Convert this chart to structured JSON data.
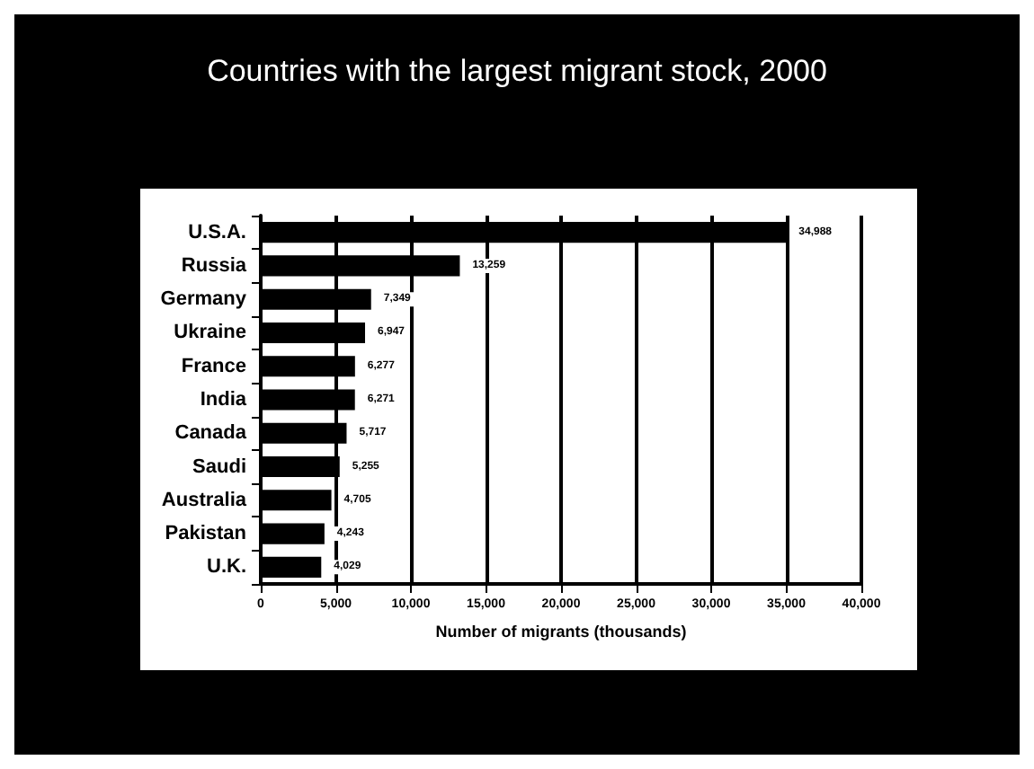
{
  "chart_data": {
    "type": "bar",
    "orientation": "horizontal",
    "title": "Countries with the largest migrant stock, 2000",
    "xlabel": "Number of migrants (thousands)",
    "categories": [
      "U.S.A.",
      "Russia",
      "Germany",
      "Ukraine",
      "France",
      "India",
      "Canada",
      "Saudi",
      "Australia",
      "Pakistan",
      "U.K."
    ],
    "values": [
      34988,
      13259,
      7349,
      6947,
      6277,
      6271,
      5717,
      5255,
      4705,
      4243,
      4029
    ],
    "value_labels": [
      "34,988",
      "13,259",
      "7,349",
      "6,947",
      "6,277",
      "6,271",
      "5,717",
      "5,255",
      "4,705",
      "4,243",
      "4,029"
    ],
    "color": "#000000",
    "xlim": [
      0,
      40000
    ],
    "xticks": [
      {
        "value": 0,
        "label": "0"
      },
      {
        "value": 5000,
        "label": "5,000"
      },
      {
        "value": 10000,
        "label": "10,000"
      },
      {
        "value": 15000,
        "label": "15,000"
      },
      {
        "value": 20000,
        "label": "20,000"
      },
      {
        "value": 25000,
        "label": "25,000"
      },
      {
        "value": 30000,
        "label": "30,000"
      },
      {
        "value": 35000,
        "label": "35,000"
      },
      {
        "value": 40000,
        "label": "40,000"
      }
    ],
    "grid": "x"
  }
}
